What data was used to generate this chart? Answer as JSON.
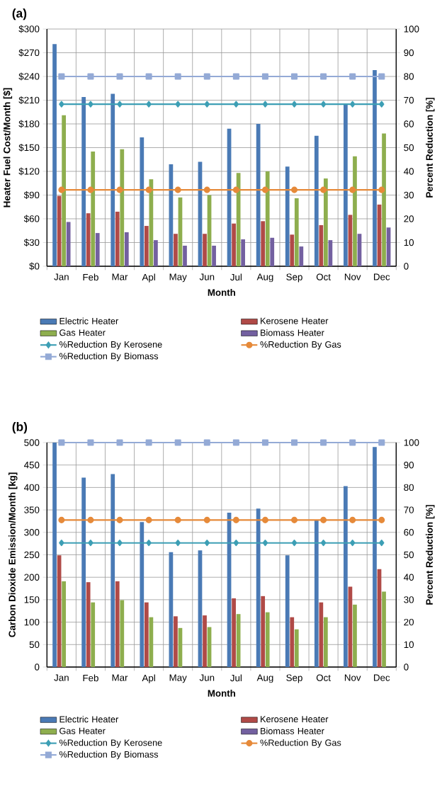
{
  "chart_data": [
    {
      "type": "bar",
      "title": "(a)",
      "xlabel": "Month",
      "ylabel": "Heater Fuel Cost/Month [$]",
      "y2label": "Percent Reduction [%]",
      "categories": [
        "Jan",
        "Feb",
        "Mar",
        "Apl",
        "May",
        "Jun",
        "Jul",
        "Aug",
        "Sep",
        "Oct",
        "Nov",
        "Dec"
      ],
      "ylim": [
        0,
        300
      ],
      "yticks": [
        {
          "value": 0,
          "label": "$0"
        },
        {
          "value": 30,
          "label": "$30"
        },
        {
          "value": 60,
          "label": "$60"
        },
        {
          "value": 90,
          "label": "$90"
        },
        {
          "value": 120,
          "label": "$120"
        },
        {
          "value": 150,
          "label": "$150"
        },
        {
          "value": 180,
          "label": "$180"
        },
        {
          "value": 210,
          "label": "$210"
        },
        {
          "value": 240,
          "label": "$240"
        },
        {
          "value": 270,
          "label": "$270"
        },
        {
          "value": 300,
          "label": "$300"
        }
      ],
      "y2lim": [
        0,
        100
      ],
      "y2ticks": [
        0,
        10,
        20,
        30,
        40,
        50,
        60,
        70,
        80,
        90,
        100
      ],
      "grid": true,
      "legend": "bottom",
      "series": [
        {
          "name": "Electric Heater",
          "color": "#4a7ab5",
          "values": [
            281,
            214,
            218,
            163,
            129,
            132,
            174,
            180,
            126,
            165,
            205,
            248
          ]
        },
        {
          "name": "Kerosene Heater",
          "color": "#b04a47",
          "values": [
            89,
            67,
            69,
            51,
            41,
            41,
            54,
            57,
            40,
            52,
            65,
            78
          ]
        },
        {
          "name": "Gas Heater",
          "color": "#8eae4e",
          "values": [
            191,
            145,
            148,
            110,
            87,
            90,
            118,
            120,
            86,
            111,
            139,
            168
          ]
        },
        {
          "name": "Biomass Heater",
          "color": "#7360a0",
          "values": [
            56,
            42,
            43,
            33,
            26,
            26,
            34,
            36,
            25,
            33,
            41,
            49
          ]
        },
        {
          "name": "%Reduction By Kerosene",
          "type": "line",
          "axis": "y2",
          "marker": "diamond",
          "color": "#3d9fb5",
          "values": [
            68.3,
            68.3,
            68.3,
            68.3,
            68.3,
            68.3,
            68.3,
            68.3,
            68.3,
            68.3,
            68.3,
            68.3
          ]
        },
        {
          "name": "%Reduction By Gas",
          "type": "line",
          "axis": "y2",
          "marker": "circle",
          "color": "#e68a3a",
          "values": [
            32.2,
            32.2,
            32.2,
            32.2,
            32.2,
            32.2,
            32.2,
            32.2,
            32.2,
            32.2,
            32.2,
            32.2
          ]
        },
        {
          "name": "%Reduction By Biomass",
          "type": "line",
          "axis": "y2",
          "marker": "square",
          "color": "#94aad6",
          "values": [
            80,
            80,
            80,
            80,
            80,
            80,
            80,
            80,
            80,
            80,
            80,
            80
          ]
        }
      ]
    },
    {
      "type": "bar",
      "title": "(b)",
      "xlabel": "Month",
      "ylabel": "Carbon Dioxide Emission/Month [kg]",
      "y2label": "Percent Reduction [%]",
      "categories": [
        "Jan",
        "Feb",
        "Mar",
        "Apl",
        "May",
        "Jun",
        "Jul",
        "Aug",
        "Sep",
        "Oct",
        "Nov",
        "Dec"
      ],
      "ylim": [
        0,
        500
      ],
      "yticks": [
        0,
        50,
        100,
        150,
        200,
        250,
        300,
        350,
        400,
        450,
        500
      ],
      "y2lim": [
        0,
        100
      ],
      "y2ticks": [
        0,
        10,
        20,
        30,
        40,
        50,
        60,
        70,
        80,
        90,
        100
      ],
      "grid": true,
      "legend": "bottom",
      "series": [
        {
          "name": "Electric Heater",
          "color": "#4a7ab5",
          "values": [
            500,
            422,
            430,
            323,
            256,
            260,
            344,
            353,
            249,
            328,
            403,
            490
          ]
        },
        {
          "name": "Kerosene Heater",
          "color": "#b04a47",
          "values": [
            249,
            189,
            191,
            144,
            113,
            115,
            153,
            158,
            111,
            144,
            179,
            218
          ]
        },
        {
          "name": "Gas Heater",
          "color": "#8eae4e",
          "values": [
            191,
            144,
            149,
            111,
            87,
            89,
            118,
            122,
            84,
            111,
            139,
            168
          ]
        },
        {
          "name": "Biomass Heater",
          "color": "#7360a0",
          "values": [
            0,
            0,
            0,
            0,
            0,
            0,
            0,
            0,
            0,
            0,
            0,
            0
          ]
        },
        {
          "name": "%Reduction By Kerosene",
          "type": "line",
          "axis": "y2",
          "marker": "diamond",
          "color": "#3d9fb5",
          "values": [
            55.3,
            55.3,
            55.3,
            55.3,
            55.3,
            55.3,
            55.3,
            55.3,
            55.3,
            55.3,
            55.3,
            55.3
          ]
        },
        {
          "name": "%Reduction By Gas",
          "type": "line",
          "axis": "y2",
          "marker": "circle",
          "color": "#e68a3a",
          "values": [
            65.5,
            65.5,
            65.5,
            65.5,
            65.5,
            65.5,
            65.5,
            65.5,
            65.5,
            65.5,
            65.5,
            65.5
          ]
        },
        {
          "name": "%Reduction By Biomass",
          "type": "line",
          "axis": "y2",
          "marker": "square",
          "color": "#94aad6",
          "values": [
            100,
            100,
            100,
            100,
            100,
            100,
            100,
            100,
            100,
            100,
            100,
            100
          ]
        }
      ]
    }
  ]
}
